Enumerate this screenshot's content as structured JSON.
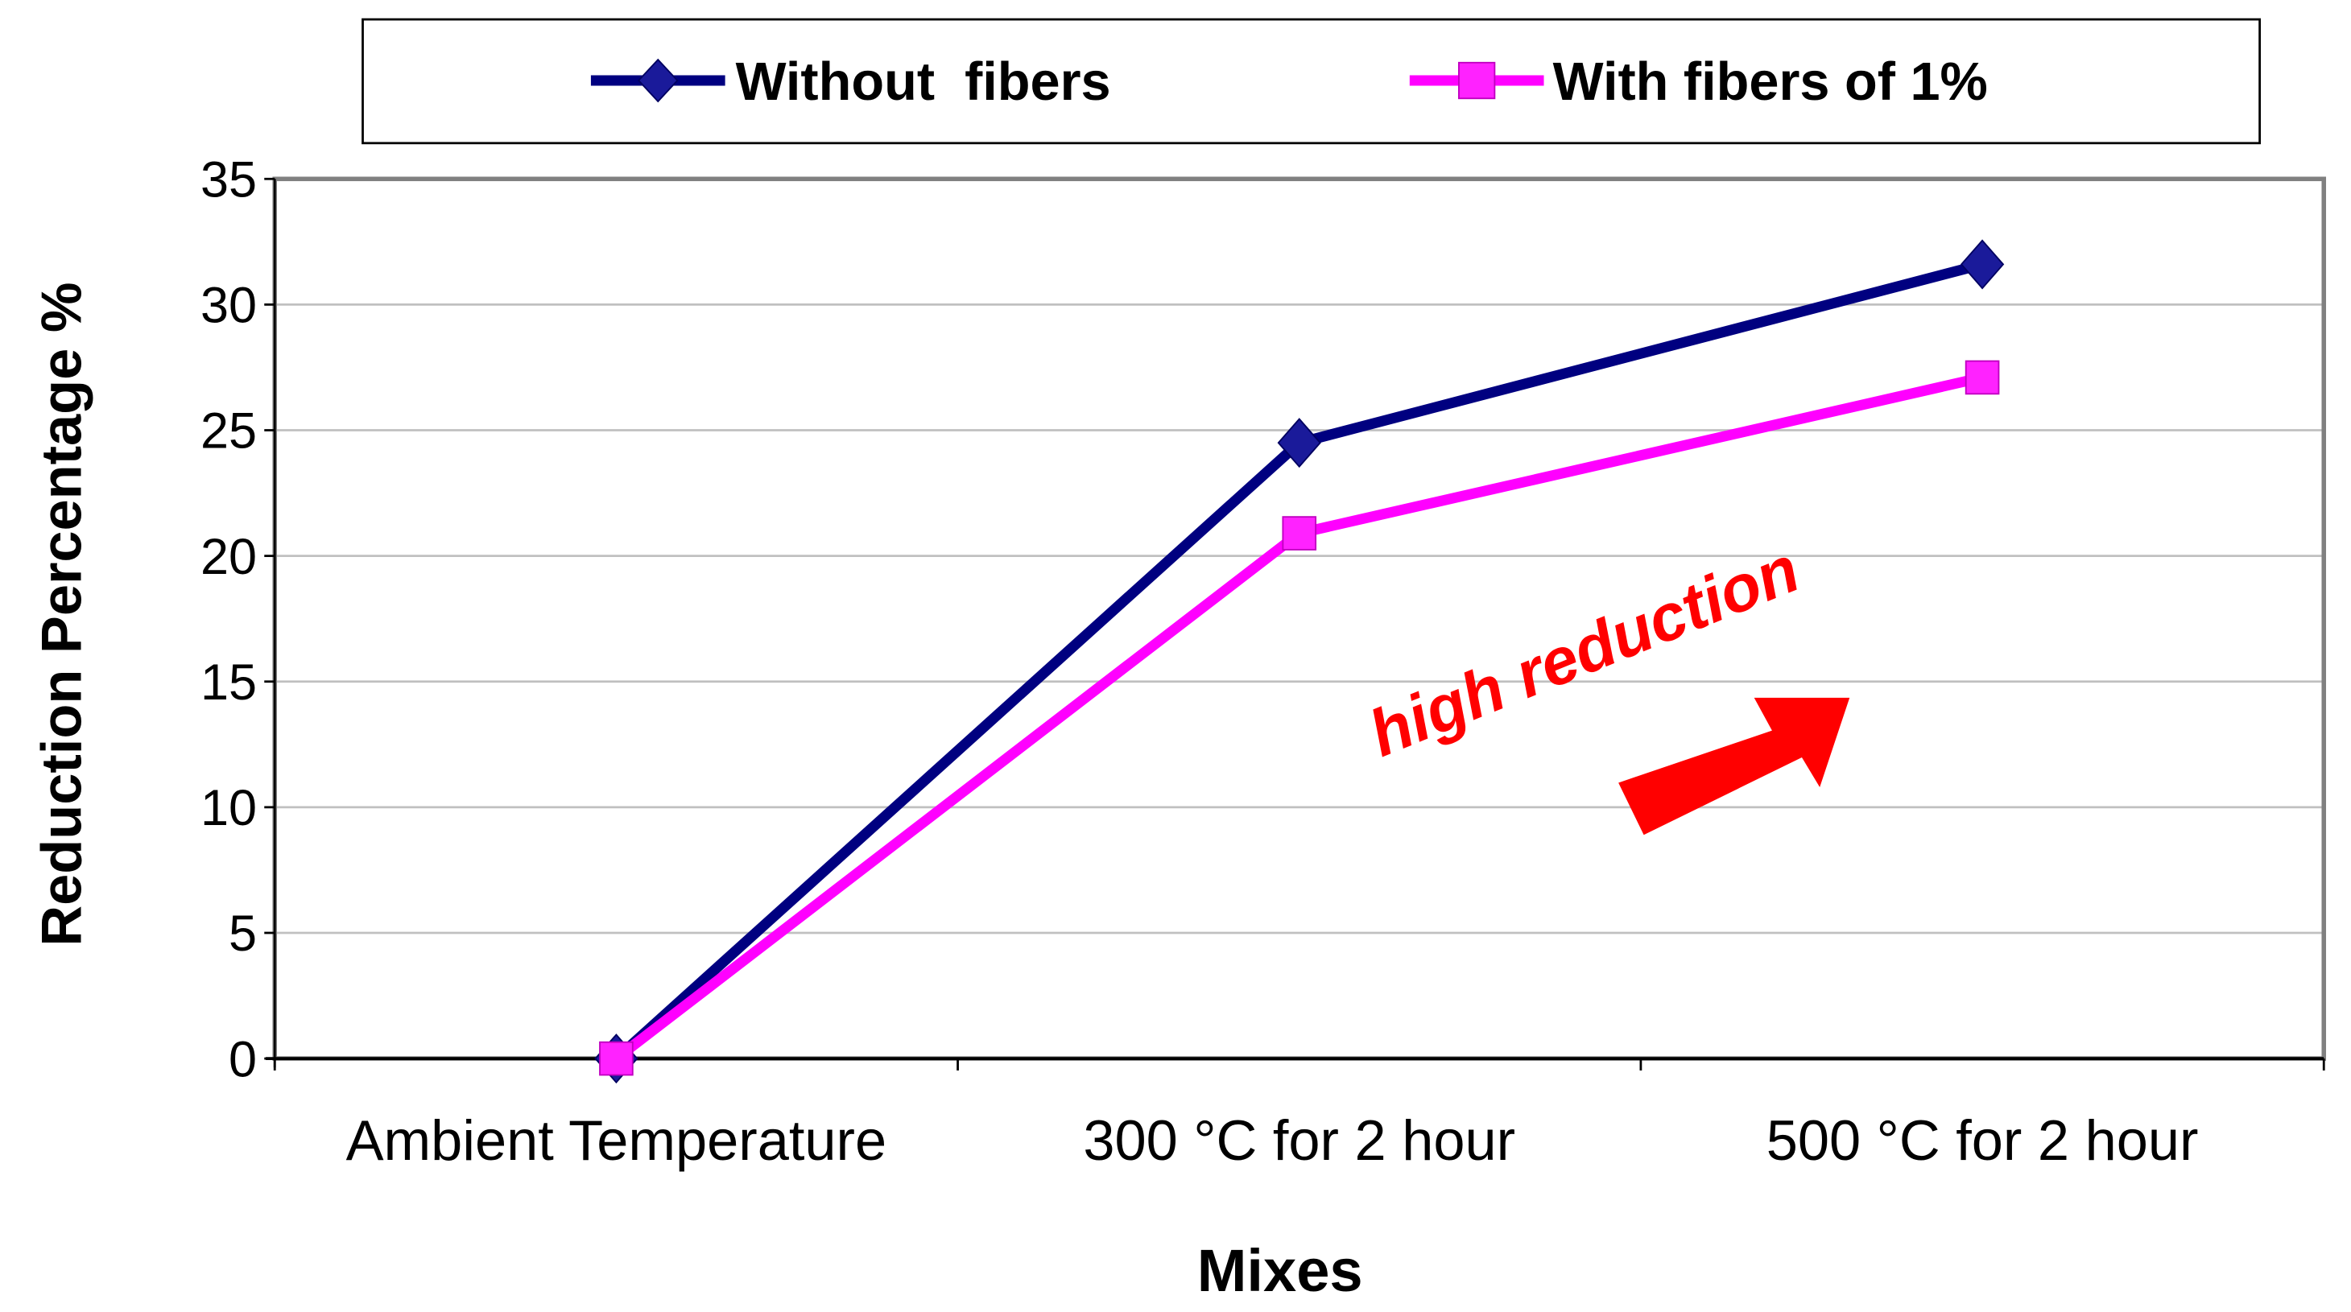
{
  "chart_data": {
    "type": "line",
    "title": "",
    "xlabel": "Mixes",
    "ylabel": "Reduction Percentage %",
    "categories": [
      "Ambient Temperature",
      "300 °C for 2 hour",
      "500 °C  for 2 hour"
    ],
    "ylim": [
      0,
      35
    ],
    "yticks": [
      0,
      5,
      10,
      15,
      20,
      25,
      30,
      35
    ],
    "grid": true,
    "legend_placement": "top",
    "series": [
      {
        "name": "Without  fibers",
        "values": [
          0,
          24.5,
          31.6
        ],
        "color": "#000080",
        "marker": "diamond"
      },
      {
        "name": "With fibers of 1%",
        "values": [
          0,
          20.9,
          27.1
        ],
        "color": "#FF00FF",
        "marker": "square"
      }
    ],
    "annotations": [
      {
        "text": "high reduction",
        "color": "#FF0000",
        "arrow": "up-right"
      }
    ]
  }
}
